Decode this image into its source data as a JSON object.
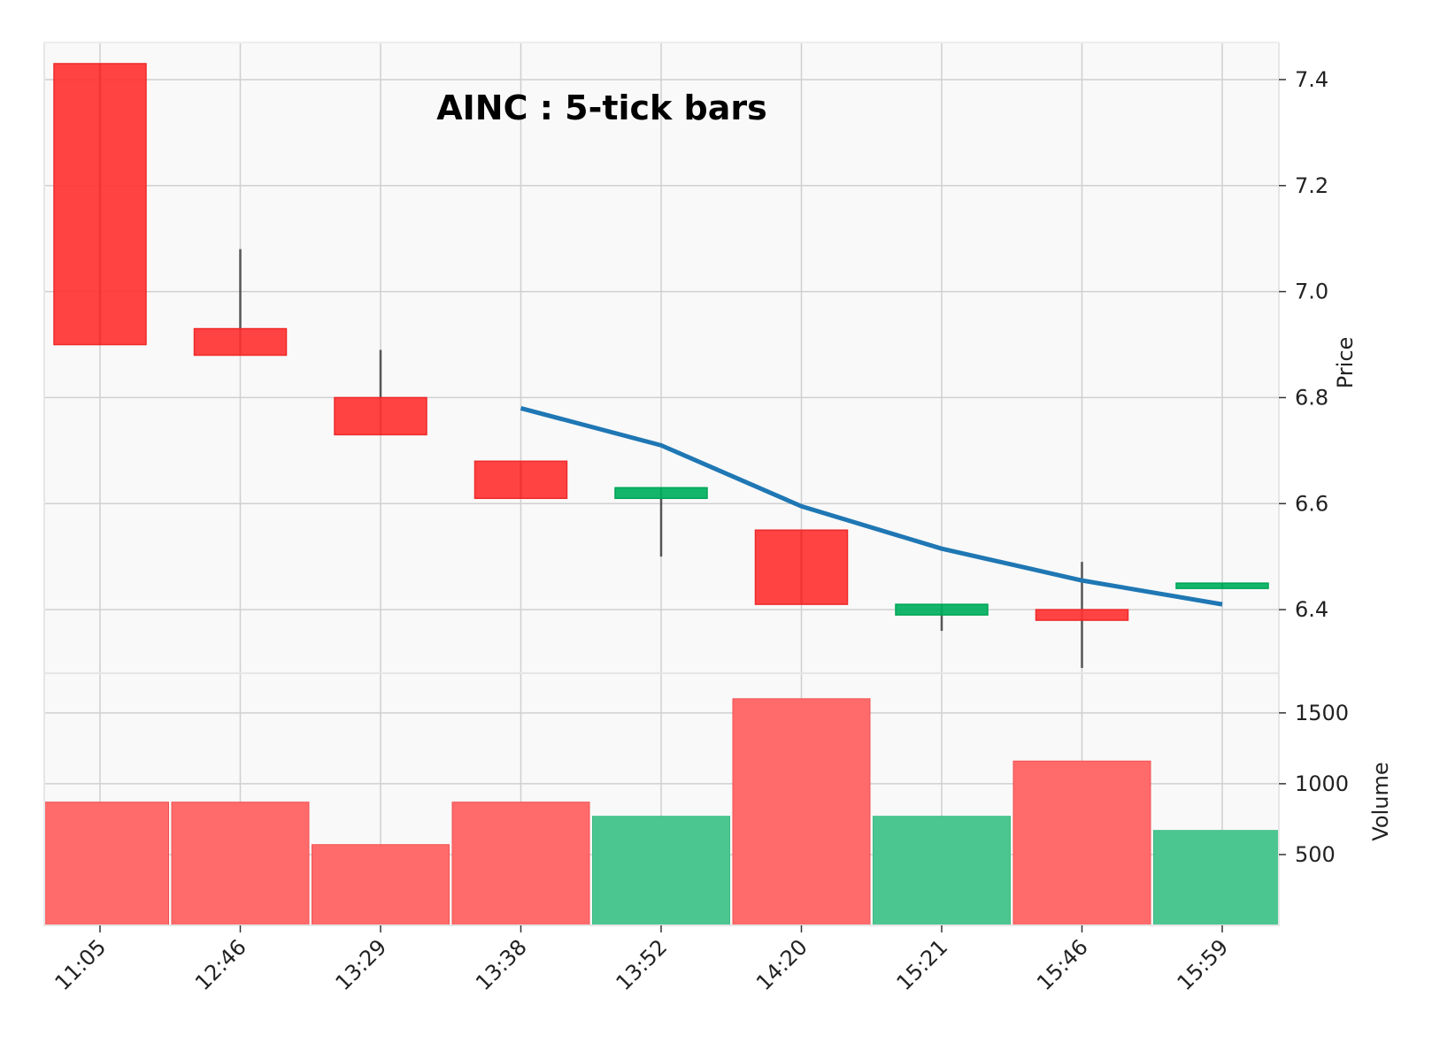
{
  "chart_data": {
    "type": "candlestick",
    "title": "AINC : 5-tick bars",
    "categories": [
      "11:05",
      "12:46",
      "13:29",
      "13:38",
      "13:52",
      "14:20",
      "15:21",
      "15:46",
      "15:59"
    ],
    "ohlc": [
      {
        "open": 7.43,
        "high": 7.43,
        "low": 6.9,
        "close": 6.9
      },
      {
        "open": 6.93,
        "high": 7.08,
        "low": 6.88,
        "close": 6.88
      },
      {
        "open": 6.8,
        "high": 6.89,
        "low": 6.73,
        "close": 6.73
      },
      {
        "open": 6.68,
        "high": 6.68,
        "low": 6.61,
        "close": 6.61
      },
      {
        "open": 6.61,
        "high": 6.63,
        "low": 6.5,
        "close": 6.63
      },
      {
        "open": 6.55,
        "high": 6.55,
        "low": 6.41,
        "close": 6.41
      },
      {
        "open": 6.39,
        "high": 6.41,
        "low": 6.36,
        "close": 6.41
      },
      {
        "open": 6.4,
        "high": 6.49,
        "low": 6.29,
        "close": 6.38
      },
      {
        "open": 6.44,
        "high": 6.45,
        "low": 6.44,
        "close": 6.45
      }
    ],
    "volume": [
      870,
      870,
      570,
      870,
      770,
      1600,
      770,
      1160,
      670
    ],
    "moving_average": [
      null,
      null,
      null,
      6.78,
      6.71,
      6.595,
      6.515,
      6.455,
      6.41
    ],
    "price_axis": {
      "label": "Price",
      "ticks": [
        6.4,
        6.6,
        6.8,
        7.0,
        7.2,
        7.4
      ],
      "range": [
        6.28,
        7.47
      ]
    },
    "volume_axis": {
      "label": "Volume",
      "ticks": [
        500,
        1000,
        1500
      ],
      "range": [
        0,
        1780
      ]
    },
    "grid": true,
    "colors": {
      "up": "#00b060",
      "down": "#ff3333",
      "up_volume": "#4cc690",
      "down_volume": "#ff6a6a",
      "moving_average": "#1f77b4",
      "wick": "#555555",
      "grid": "#d0d0d0",
      "background": "#f9f9f9"
    }
  }
}
